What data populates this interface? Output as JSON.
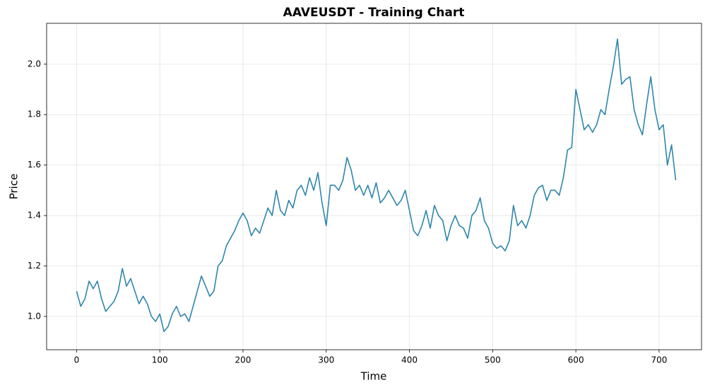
{
  "chart_data": {
    "type": "line",
    "title": "AAVEUSDT - Training Chart",
    "x_label": "Time",
    "y_label": "Price",
    "x": [
      0,
      5,
      10,
      15,
      20,
      25,
      30,
      35,
      40,
      45,
      50,
      55,
      60,
      65,
      70,
      75,
      80,
      85,
      90,
      95,
      100,
      105,
      110,
      115,
      120,
      125,
      130,
      135,
      140,
      145,
      150,
      155,
      160,
      165,
      170,
      175,
      180,
      185,
      190,
      195,
      200,
      205,
      210,
      215,
      220,
      225,
      230,
      235,
      240,
      245,
      250,
      255,
      260,
      265,
      270,
      275,
      280,
      285,
      290,
      295,
      300,
      305,
      310,
      315,
      320,
      325,
      330,
      335,
      340,
      345,
      350,
      355,
      360,
      365,
      370,
      375,
      380,
      385,
      390,
      395,
      400,
      405,
      410,
      415,
      420,
      425,
      430,
      435,
      440,
      445,
      450,
      455,
      460,
      465,
      470,
      475,
      480,
      485,
      490,
      495,
      500,
      505,
      510,
      515,
      520,
      525,
      530,
      535,
      540,
      545,
      550,
      555,
      560,
      565,
      570,
      575,
      580,
      585,
      590,
      595,
      600,
      605,
      610,
      615,
      620,
      625,
      630,
      635,
      640,
      645,
      650,
      655,
      660,
      665,
      670,
      675,
      680,
      685,
      690,
      695,
      700,
      705,
      710,
      715,
      720
    ],
    "series": [
      {
        "color": "#2e86ab",
        "values": [
          1.1,
          1.04,
          1.07,
          1.14,
          1.11,
          1.14,
          1.07,
          1.02,
          1.04,
          1.06,
          1.1,
          1.19,
          1.12,
          1.15,
          1.1,
          1.05,
          1.08,
          1.05,
          1.0,
          0.98,
          1.01,
          0.94,
          0.96,
          1.01,
          1.04,
          1.0,
          1.01,
          0.98,
          1.04,
          1.1,
          1.16,
          1.12,
          1.08,
          1.1,
          1.2,
          1.22,
          1.28,
          1.31,
          1.34,
          1.38,
          1.41,
          1.38,
          1.32,
          1.35,
          1.33,
          1.38,
          1.43,
          1.4,
          1.5,
          1.42,
          1.4,
          1.46,
          1.43,
          1.5,
          1.52,
          1.48,
          1.55,
          1.5,
          1.57,
          1.45,
          1.36,
          1.52,
          1.52,
          1.5,
          1.54,
          1.63,
          1.58,
          1.5,
          1.52,
          1.48,
          1.52,
          1.47,
          1.53,
          1.45,
          1.47,
          1.5,
          1.47,
          1.44,
          1.46,
          1.5,
          1.42,
          1.34,
          1.32,
          1.36,
          1.42,
          1.35,
          1.44,
          1.4,
          1.38,
          1.3,
          1.36,
          1.4,
          1.36,
          1.35,
          1.31,
          1.4,
          1.42,
          1.47,
          1.38,
          1.35,
          1.29,
          1.27,
          1.28,
          1.26,
          1.3,
          1.44,
          1.36,
          1.38,
          1.35,
          1.4,
          1.48,
          1.51,
          1.52,
          1.46,
          1.5,
          1.5,
          1.48,
          1.55,
          1.66,
          1.67,
          1.9,
          1.82,
          1.74,
          1.76,
          1.73,
          1.76,
          1.82,
          1.8,
          1.9,
          1.99,
          2.1,
          1.92,
          1.94,
          1.95,
          1.82,
          1.76,
          1.72,
          1.84,
          1.95,
          1.82,
          1.74,
          1.76,
          1.6,
          1.68,
          1.54
        ]
      }
    ],
    "xlim": [
      -36,
      751
    ],
    "ylim": [
      0.868,
      2.162
    ],
    "xticks": [
      0,
      100,
      200,
      300,
      400,
      500,
      600,
      700
    ],
    "yticks": [
      {
        "value": 1.0,
        "label": "1.0"
      },
      1.2,
      1.4,
      1.6,
      1.8,
      {
        "value": 2.0,
        "label": "2.0"
      }
    ],
    "grid": true
  }
}
